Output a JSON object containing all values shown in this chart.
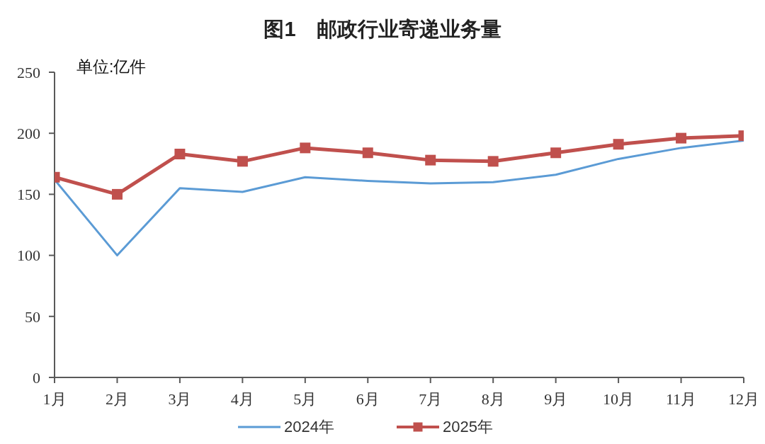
{
  "chart_data": {
    "type": "line",
    "title": "图1　邮政行业寄递业务量",
    "ylabel": "单位:亿件",
    "categories": [
      "1月",
      "2月",
      "3月",
      "4月",
      "5月",
      "6月",
      "7月",
      "8月",
      "9月",
      "10月",
      "11月",
      "12月"
    ],
    "series": [
      {
        "name": "2024年",
        "color": "#5b9bd5",
        "marker": "none",
        "values": [
          162,
          100,
          155,
          152,
          164,
          161,
          159,
          160,
          166,
          179,
          188,
          194
        ]
      },
      {
        "name": "2025年",
        "color": "#c0504d",
        "marker": "square",
        "values": [
          164,
          150,
          183,
          177,
          188,
          184,
          178,
          177,
          184,
          191,
          196,
          198
        ]
      }
    ],
    "ylim": [
      0,
      250
    ],
    "yticks": [
      0,
      50,
      100,
      150,
      200,
      250
    ],
    "grid": false,
    "legend": "bottom"
  }
}
